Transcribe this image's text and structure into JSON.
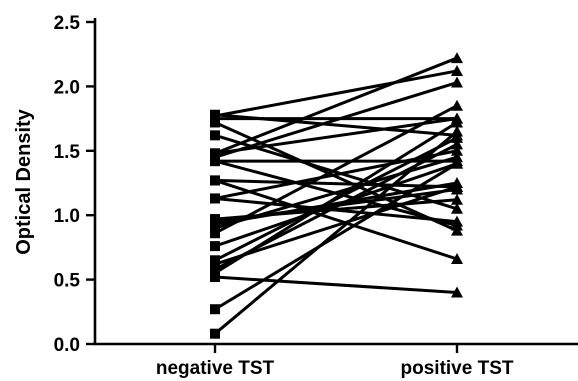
{
  "chart_data": {
    "type": "line",
    "categories": [
      "negative TST",
      "positive TST"
    ],
    "xlabel": "",
    "ylabel": "Optical Density",
    "ylim": [
      0.0,
      2.5
    ],
    "yticks": [
      "0.0",
      "0.5",
      "1.0",
      "1.5",
      "2.0",
      "2.5"
    ],
    "grid": false,
    "legend": "none",
    "markers": {
      "negative TST": "square",
      "positive TST": "triangle"
    },
    "series": [
      {
        "values": [
          0.08,
          1.65
        ]
      },
      {
        "values": [
          0.27,
          1.4
        ]
      },
      {
        "values": [
          0.52,
          0.4
        ]
      },
      {
        "values": [
          0.55,
          1.72
        ]
      },
      {
        "values": [
          0.58,
          1.55
        ]
      },
      {
        "values": [
          0.62,
          1.22
        ]
      },
      {
        "values": [
          0.65,
          1.6
        ]
      },
      {
        "values": [
          0.76,
          1.4
        ]
      },
      {
        "values": [
          0.86,
          1.85
        ]
      },
      {
        "values": [
          0.9,
          1.45
        ]
      },
      {
        "values": [
          0.93,
          1.25
        ]
      },
      {
        "values": [
          0.95,
          1.2
        ]
      },
      {
        "values": [
          0.97,
          1.12
        ]
      },
      {
        "values": [
          1.13,
          0.95
        ]
      },
      {
        "values": [
          1.13,
          1.5
        ]
      },
      {
        "values": [
          1.27,
          0.66
        ]
      },
      {
        "values": [
          1.27,
          1.22
        ]
      },
      {
        "values": [
          1.42,
          0.92
        ]
      },
      {
        "values": [
          1.42,
          1.42
        ]
      },
      {
        "values": [
          1.45,
          2.03
        ]
      },
      {
        "values": [
          1.48,
          1.75
        ]
      },
      {
        "values": [
          1.48,
          2.22
        ]
      },
      {
        "values": [
          1.62,
          1.05
        ]
      },
      {
        "values": [
          1.72,
          0.88
        ]
      },
      {
        "values": [
          1.75,
          1.75
        ]
      },
      {
        "values": [
          1.77,
          2.12
        ]
      },
      {
        "values": [
          1.78,
          1.62
        ]
      }
    ]
  }
}
